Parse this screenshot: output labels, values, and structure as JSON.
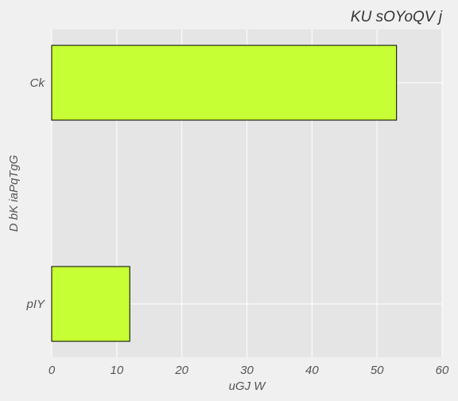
{
  "chart_data": {
    "type": "bar",
    "orientation": "horizontal",
    "title": "KU sOYoQV j",
    "xlabel": "uGJ W",
    "ylabel": "D bK iaPqTgG",
    "categories": [
      "Ck",
      "pIY"
    ],
    "values": [
      53,
      12
    ],
    "xlim": [
      0,
      60
    ],
    "xticks": [
      0,
      10,
      20,
      30,
      40,
      50,
      60
    ],
    "grid": true,
    "colors": {
      "bar_fill": "#c6ff33",
      "bar_edge": "#000000",
      "plot_background": "#e5e5e5",
      "figure_background": "#f0f0f0",
      "grid": "#ffffff"
    }
  }
}
